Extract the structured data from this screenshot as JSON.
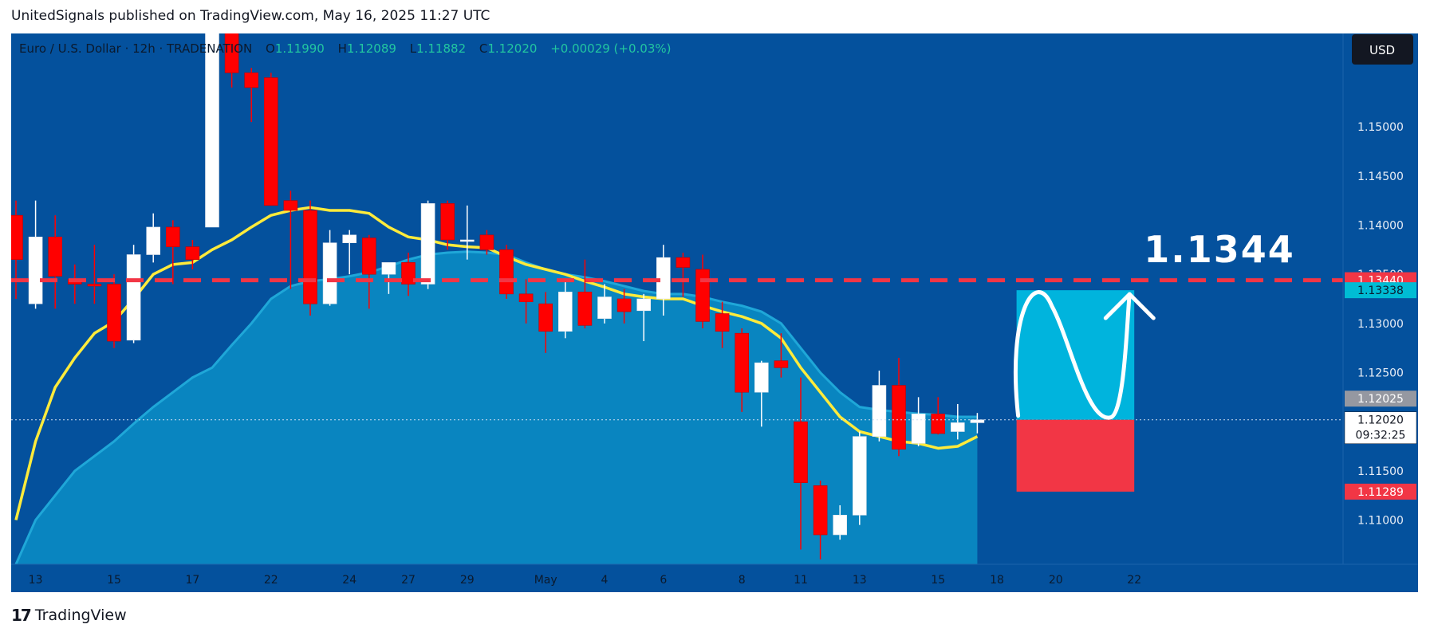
{
  "header": {
    "publisher_line": "UnitedSignals published on TradingView.com, May 16, 2025 11:27 UTC"
  },
  "legend": {
    "symbol": "Euro / U.S. Dollar · 12h · TRADENATION",
    "o_label": "O",
    "o_value": "1.11990",
    "h_label": "H",
    "h_value": "1.12089",
    "l_label": "L",
    "l_value": "1.11882",
    "c_label": "C",
    "c_value": "1.12020",
    "change": "+0.00029 (+0.03%)"
  },
  "currency_button": "USD",
  "footer": {
    "brand": "TradingView",
    "mark": "17"
  },
  "colors": {
    "background": "#04519d",
    "area_fill": "#0a8bc4",
    "bull": "#ffffff",
    "bear": "#ff0000",
    "ema": "#ffeb3b",
    "target_line": "#f23645",
    "profit_zone": "#00b4dd",
    "loss_zone": "#f23645"
  },
  "annotation": {
    "target_text": "1.1344"
  },
  "price_badges": {
    "target": "1.13440",
    "take_profit": "1.13338",
    "prev": "1.12025",
    "last": "1.12020",
    "countdown": "09:32:25",
    "stop": "1.11289"
  },
  "chart_data": {
    "type": "candlestick",
    "symbol": "EURUSD",
    "timeframe": "12h",
    "ylim": [
      1.1055,
      1.1595
    ],
    "y_ticks": [
      "1.15000",
      "1.14500",
      "1.14000",
      "1.13500",
      "1.13000",
      "1.12500",
      "1.12000",
      "1.11500",
      "1.11000"
    ],
    "y_tick_values": [
      1.15,
      1.145,
      1.14,
      1.135,
      1.13,
      1.125,
      1.12,
      1.115,
      1.11
    ],
    "x_ticks": [
      {
        "label": "13",
        "bar": 1
      },
      {
        "label": "15",
        "bar": 5
      },
      {
        "label": "17",
        "bar": 9
      },
      {
        "label": "22",
        "bar": 13
      },
      {
        "label": "24",
        "bar": 17
      },
      {
        "label": "27",
        "bar": 20
      },
      {
        "label": "29",
        "bar": 23
      },
      {
        "label": "May",
        "bar": 27
      },
      {
        "label": "4",
        "bar": 30
      },
      {
        "label": "6",
        "bar": 33
      },
      {
        "label": "8",
        "bar": 37
      },
      {
        "label": "11",
        "bar": 40
      },
      {
        "label": "13",
        "bar": 43
      },
      {
        "label": "15",
        "bar": 47
      },
      {
        "label": "18",
        "bar": 50
      },
      {
        "label": "20",
        "bar": 53
      },
      {
        "label": "22",
        "bar": 57
      }
    ],
    "bar_count": 60,
    "candles": [
      {
        "o": 1.141,
        "h": 1.1425,
        "l": 1.1325,
        "c": 1.1365
      },
      {
        "o": 1.132,
        "h": 1.1425,
        "l": 1.1315,
        "c": 1.1388
      },
      {
        "o": 1.1388,
        "h": 1.141,
        "l": 1.1315,
        "c": 1.1348
      },
      {
        "o": 1.1345,
        "h": 1.136,
        "l": 1.132,
        "c": 1.134
      },
      {
        "o": 1.134,
        "h": 1.138,
        "l": 1.132,
        "c": 1.1338
      },
      {
        "o": 1.134,
        "h": 1.135,
        "l": 1.1275,
        "c": 1.1282
      },
      {
        "o": 1.1283,
        "h": 1.138,
        "l": 1.128,
        "c": 1.137
      },
      {
        "o": 1.137,
        "h": 1.1412,
        "l": 1.1362,
        "c": 1.1398
      },
      {
        "o": 1.1398,
        "h": 1.1405,
        "l": 1.134,
        "c": 1.1378
      },
      {
        "o": 1.1378,
        "h": 1.1385,
        "l": 1.1355,
        "c": 1.1365
      },
      {
        "o": 1.1398,
        "h": 1.16,
        "l": 1.1398,
        "c": 1.16
      },
      {
        "o": 1.16,
        "h": 1.1605,
        "l": 1.154,
        "c": 1.1555
      },
      {
        "o": 1.1555,
        "h": 1.156,
        "l": 1.1505,
        "c": 1.154
      },
      {
        "o": 1.155,
        "h": 1.1555,
        "l": 1.142,
        "c": 1.142
      },
      {
        "o": 1.1425,
        "h": 1.1435,
        "l": 1.1335,
        "c": 1.1415
      },
      {
        "o": 1.1415,
        "h": 1.1425,
        "l": 1.1308,
        "c": 1.132
      },
      {
        "o": 1.132,
        "h": 1.1395,
        "l": 1.1318,
        "c": 1.1382
      },
      {
        "o": 1.1382,
        "h": 1.1395,
        "l": 1.135,
        "c": 1.139
      },
      {
        "o": 1.1387,
        "h": 1.139,
        "l": 1.1315,
        "c": 1.135
      },
      {
        "o": 1.135,
        "h": 1.1362,
        "l": 1.133,
        "c": 1.1362
      },
      {
        "o": 1.1362,
        "h": 1.1372,
        "l": 1.1328,
        "c": 1.134
      },
      {
        "o": 1.134,
        "h": 1.1425,
        "l": 1.1335,
        "c": 1.1422
      },
      {
        "o": 1.1422,
        "h": 1.1425,
        "l": 1.1375,
        "c": 1.1385
      },
      {
        "o": 1.1385,
        "h": 1.142,
        "l": 1.1365,
        "c": 1.1385
      },
      {
        "o": 1.139,
        "h": 1.1395,
        "l": 1.137,
        "c": 1.1375
      },
      {
        "o": 1.1375,
        "h": 1.138,
        "l": 1.1325,
        "c": 1.133
      },
      {
        "o": 1.133,
        "h": 1.1345,
        "l": 1.13,
        "c": 1.1322
      },
      {
        "o": 1.132,
        "h": 1.1332,
        "l": 1.127,
        "c": 1.1292
      },
      {
        "o": 1.1292,
        "h": 1.1342,
        "l": 1.1285,
        "c": 1.1332
      },
      {
        "o": 1.1332,
        "h": 1.1365,
        "l": 1.1295,
        "c": 1.1298
      },
      {
        "o": 1.1305,
        "h": 1.134,
        "l": 1.13,
        "c": 1.1327
      },
      {
        "o": 1.1325,
        "h": 1.1335,
        "l": 1.13,
        "c": 1.1312
      },
      {
        "o": 1.1313,
        "h": 1.133,
        "l": 1.1282,
        "c": 1.1325
      },
      {
        "o": 1.1325,
        "h": 1.138,
        "l": 1.1308,
        "c": 1.1367
      },
      {
        "o": 1.1367,
        "h": 1.1372,
        "l": 1.1327,
        "c": 1.1357
      },
      {
        "o": 1.1355,
        "h": 1.137,
        "l": 1.1295,
        "c": 1.1302
      },
      {
        "o": 1.131,
        "h": 1.1322,
        "l": 1.1275,
        "c": 1.1292
      },
      {
        "o": 1.129,
        "h": 1.1295,
        "l": 1.121,
        "c": 1.123
      },
      {
        "o": 1.123,
        "h": 1.1262,
        "l": 1.1195,
        "c": 1.126
      },
      {
        "o": 1.1262,
        "h": 1.129,
        "l": 1.1245,
        "c": 1.1255
      },
      {
        "o": 1.12,
        "h": 1.1245,
        "l": 1.107,
        "c": 1.1138
      },
      {
        "o": 1.1135,
        "h": 1.114,
        "l": 1.106,
        "c": 1.1085
      },
      {
        "o": 1.1085,
        "h": 1.1115,
        "l": 1.108,
        "c": 1.1105
      },
      {
        "o": 1.1105,
        "h": 1.119,
        "l": 1.1095,
        "c": 1.1185
      },
      {
        "o": 1.1185,
        "h": 1.1252,
        "l": 1.118,
        "c": 1.1237
      },
      {
        "o": 1.1237,
        "h": 1.1265,
        "l": 1.1165,
        "c": 1.1172
      },
      {
        "o": 1.1178,
        "h": 1.1225,
        "l": 1.1175,
        "c": 1.1208
      },
      {
        "o": 1.1208,
        "h": 1.1225,
        "l": 1.1187,
        "c": 1.1188
      },
      {
        "o": 1.119,
        "h": 1.1218,
        "l": 1.1182,
        "c": 1.1199
      },
      {
        "o": 1.1199,
        "h": 1.12089,
        "l": 1.11882,
        "c": 1.1202
      }
    ],
    "ema": [
      1.11,
      1.118,
      1.1235,
      1.1265,
      1.129,
      1.1302,
      1.1325,
      1.135,
      1.136,
      1.1362,
      1.1375,
      1.1385,
      1.1398,
      1.141,
      1.1415,
      1.1418,
      1.1415,
      1.1415,
      1.1412,
      1.1398,
      1.1388,
      1.1385,
      1.138,
      1.1378,
      1.1377,
      1.1368,
      1.136,
      1.1355,
      1.135,
      1.1343,
      1.1337,
      1.133,
      1.1327,
      1.1325,
      1.1325,
      1.1318,
      1.1312,
      1.1307,
      1.13,
      1.1285,
      1.1255,
      1.123,
      1.1205,
      1.119,
      1.1185,
      1.118,
      1.1178,
      1.1173,
      1.1175,
      1.1185
    ],
    "area_top": [
      1.1055,
      1.11,
      1.1125,
      1.115,
      1.1165,
      1.118,
      1.1198,
      1.1215,
      1.123,
      1.1245,
      1.1255,
      1.1278,
      1.13,
      1.1325,
      1.1338,
      1.1343,
      1.1345,
      1.1348,
      1.1352,
      1.1358,
      1.1365,
      1.137,
      1.1372,
      1.1373,
      1.1372,
      1.137,
      1.1362,
      1.1355,
      1.135,
      1.1347,
      1.1343,
      1.1338,
      1.1333,
      1.133,
      1.133,
      1.1327,
      1.1322,
      1.1318,
      1.1312,
      1.13,
      1.1275,
      1.125,
      1.123,
      1.1215,
      1.1212,
      1.121,
      1.1208,
      1.1207,
      1.1205,
      1.1205
    ],
    "target_level": 1.1344,
    "take_profit": 1.13338,
    "entry": 1.1202,
    "stop_loss": 1.11289,
    "projection": {
      "start_bar": 51,
      "end_bar": 57
    }
  }
}
